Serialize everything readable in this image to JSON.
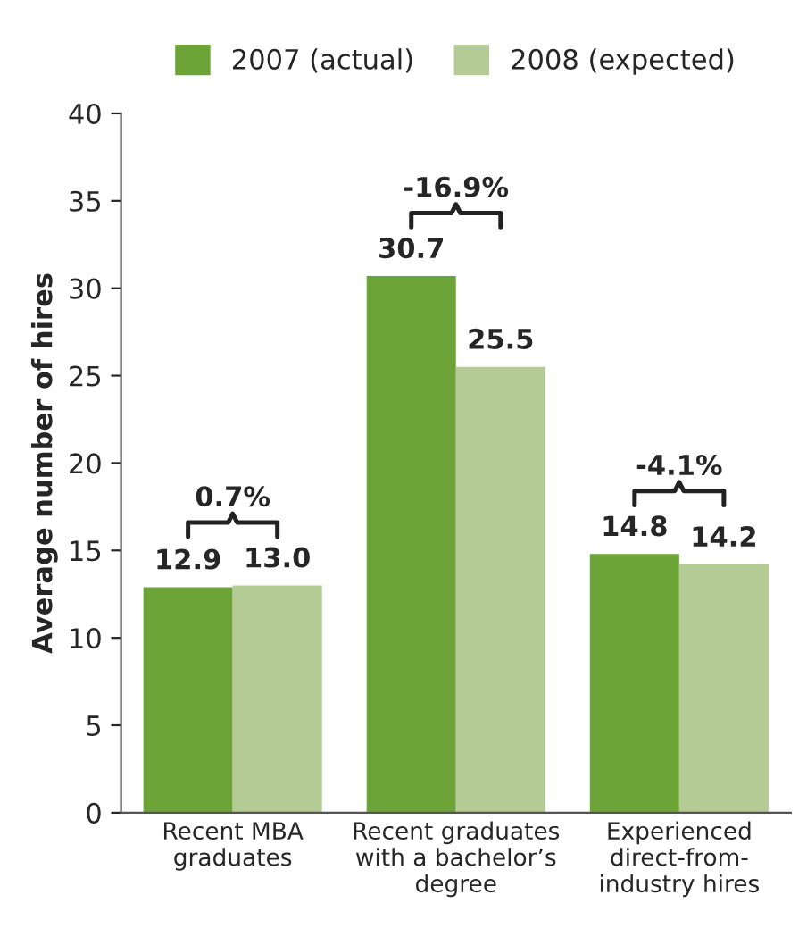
{
  "chart_data": {
    "type": "bar",
    "ylabel": "Average number of hires",
    "categories": [
      "Recent MBA\ngraduates",
      "Recent graduates\nwith a bachelor’s\ndegree",
      "Experienced\ndirect-from-\nindustry hires"
    ],
    "series": [
      {
        "name": "2007 (actual)",
        "color": "#6ca437",
        "values": [
          12.9,
          30.7,
          14.8
        ],
        "value_labels": [
          "12.9",
          "30.7",
          "14.8"
        ]
      },
      {
        "name": "2008 (expected)",
        "color": "#b5cb95",
        "values": [
          13.0,
          25.5,
          14.2
        ],
        "value_labels": [
          "13.0",
          "25.5",
          "14.2"
        ]
      }
    ],
    "ylim": [
      0,
      40
    ],
    "yticks": [
      0,
      5,
      10,
      15,
      20,
      25,
      30,
      35,
      40
    ],
    "grid": false,
    "legend": "top",
    "annotations": [
      "0.7%",
      "-16.9%",
      "-4.1%"
    ]
  }
}
